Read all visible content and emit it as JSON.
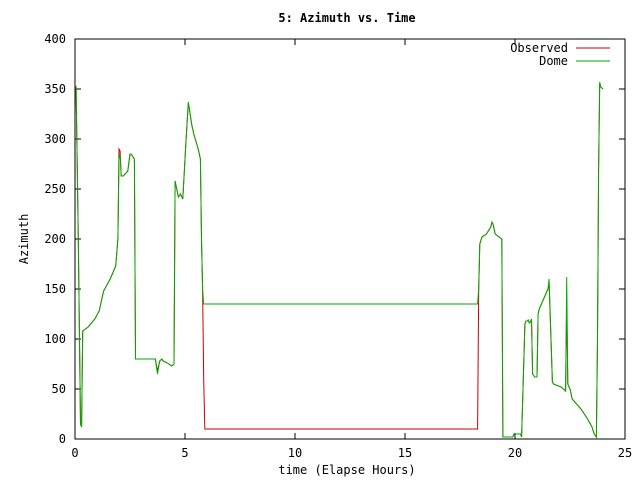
{
  "chart_data": {
    "type": "line",
    "title": "5: Azimuth vs. Time",
    "xlabel": "time (Elapse Hours)",
    "ylabel": "Azimuth",
    "xlim": [
      0,
      25
    ],
    "ylim": [
      0,
      400
    ],
    "xticks": [
      0,
      5,
      10,
      15,
      20,
      25
    ],
    "yticks": [
      0,
      50,
      100,
      150,
      200,
      250,
      300,
      350,
      400
    ],
    "grid": false,
    "legend_position": "top-right",
    "series": [
      {
        "name": "Observed",
        "color": "#cc0000",
        "x": [
          0.0,
          0.05,
          0.15,
          0.25,
          0.3,
          0.35,
          0.6,
          0.9,
          1.1,
          1.3,
          1.6,
          1.85,
          1.95,
          2.0,
          2.05,
          2.1,
          2.2,
          2.4,
          2.5,
          2.55,
          2.7,
          2.75,
          3.0,
          3.5,
          3.65,
          3.75,
          3.85,
          3.95,
          4.0,
          4.2,
          4.4,
          4.5,
          4.55,
          4.7,
          4.8,
          4.9,
          5.0,
          5.05,
          5.15,
          5.2,
          5.3,
          5.4,
          5.6,
          5.7,
          5.75,
          5.8,
          5.85,
          5.9,
          10.0,
          15.0,
          18.3,
          18.35,
          18.4,
          18.5,
          18.7,
          18.9,
          18.95,
          19.0,
          19.05,
          19.1,
          19.4,
          19.45,
          19.9,
          19.95,
          20.25,
          20.3,
          20.45,
          20.5,
          20.55,
          20.6,
          20.65,
          20.7,
          20.75,
          20.8,
          20.9,
          20.95,
          21.0,
          21.05,
          21.1,
          21.5,
          21.55,
          21.7,
          21.75,
          22.1,
          22.3,
          22.35,
          22.4,
          22.5,
          22.55,
          22.6,
          23.0,
          23.3,
          23.5,
          23.6,
          23.7,
          23.75,
          23.8,
          23.85,
          23.9,
          24.0
        ],
        "y": [
          350,
          350,
          200,
          15,
          12,
          108,
          112,
          120,
          128,
          148,
          160,
          173,
          200,
          290,
          288,
          263,
          263,
          268,
          285,
          285,
          280,
          80,
          80,
          80,
          80,
          68,
          78,
          80,
          78,
          76,
          73,
          75,
          258,
          242,
          245,
          240,
          280,
          300,
          335,
          330,
          315,
          305,
          290,
          280,
          200,
          150,
          60,
          10,
          10,
          10,
          10,
          150,
          195,
          202,
          205,
          212,
          217,
          215,
          210,
          205,
          200,
          2,
          2,
          5,
          5,
          2,
          115,
          118,
          118,
          119,
          116,
          117,
          120,
          65,
          62,
          62,
          62,
          125,
          130,
          150,
          155,
          57,
          55,
          52,
          48,
          138,
          55,
          50,
          45,
          40,
          30,
          20,
          12,
          5,
          2,
          100,
          270,
          355,
          352,
          350
        ]
      },
      {
        "name": "Dome",
        "color": "#00aa00",
        "x": [
          0.0,
          0.05,
          0.15,
          0.25,
          0.3,
          0.35,
          0.6,
          0.9,
          1.1,
          1.3,
          1.6,
          1.85,
          1.95,
          2.0,
          2.05,
          2.1,
          2.2,
          2.4,
          2.5,
          2.55,
          2.7,
          2.75,
          3.0,
          3.5,
          3.65,
          3.75,
          3.85,
          3.95,
          4.0,
          4.2,
          4.4,
          4.5,
          4.55,
          4.7,
          4.8,
          4.9,
          5.0,
          5.05,
          5.15,
          5.2,
          5.3,
          5.4,
          5.6,
          5.7,
          5.75,
          5.8,
          5.85,
          5.9,
          10.0,
          15.0,
          18.3,
          18.35,
          18.4,
          18.5,
          18.7,
          18.9,
          18.95,
          19.0,
          19.05,
          19.1,
          19.4,
          19.45,
          19.9,
          19.95,
          20.25,
          20.3,
          20.45,
          20.5,
          20.55,
          20.6,
          20.65,
          20.7,
          20.75,
          20.8,
          20.9,
          20.95,
          21.0,
          21.05,
          21.1,
          21.5,
          21.55,
          21.7,
          21.75,
          22.1,
          22.3,
          22.35,
          22.4,
          22.5,
          22.55,
          22.6,
          23.0,
          23.3,
          23.5,
          23.6,
          23.7,
          23.75,
          23.8,
          23.85,
          23.9,
          24.0
        ],
        "y": [
          350,
          352,
          200,
          15,
          12,
          108,
          112,
          120,
          128,
          148,
          160,
          173,
          200,
          280,
          285,
          263,
          263,
          268,
          285,
          285,
          280,
          80,
          80,
          80,
          80,
          65,
          78,
          80,
          78,
          76,
          73,
          75,
          258,
          242,
          245,
          240,
          280,
          300,
          337,
          330,
          315,
          305,
          290,
          280,
          200,
          150,
          135,
          135,
          135,
          135,
          135,
          150,
          195,
          202,
          205,
          212,
          217,
          215,
          210,
          205,
          200,
          2,
          2,
          5,
          5,
          2,
          115,
          118,
          118,
          119,
          116,
          117,
          120,
          65,
          62,
          62,
          62,
          125,
          130,
          150,
          160,
          57,
          55,
          52,
          48,
          162,
          55,
          50,
          45,
          40,
          30,
          20,
          12,
          5,
          2,
          100,
          270,
          357,
          352,
          350
        ]
      }
    ]
  }
}
